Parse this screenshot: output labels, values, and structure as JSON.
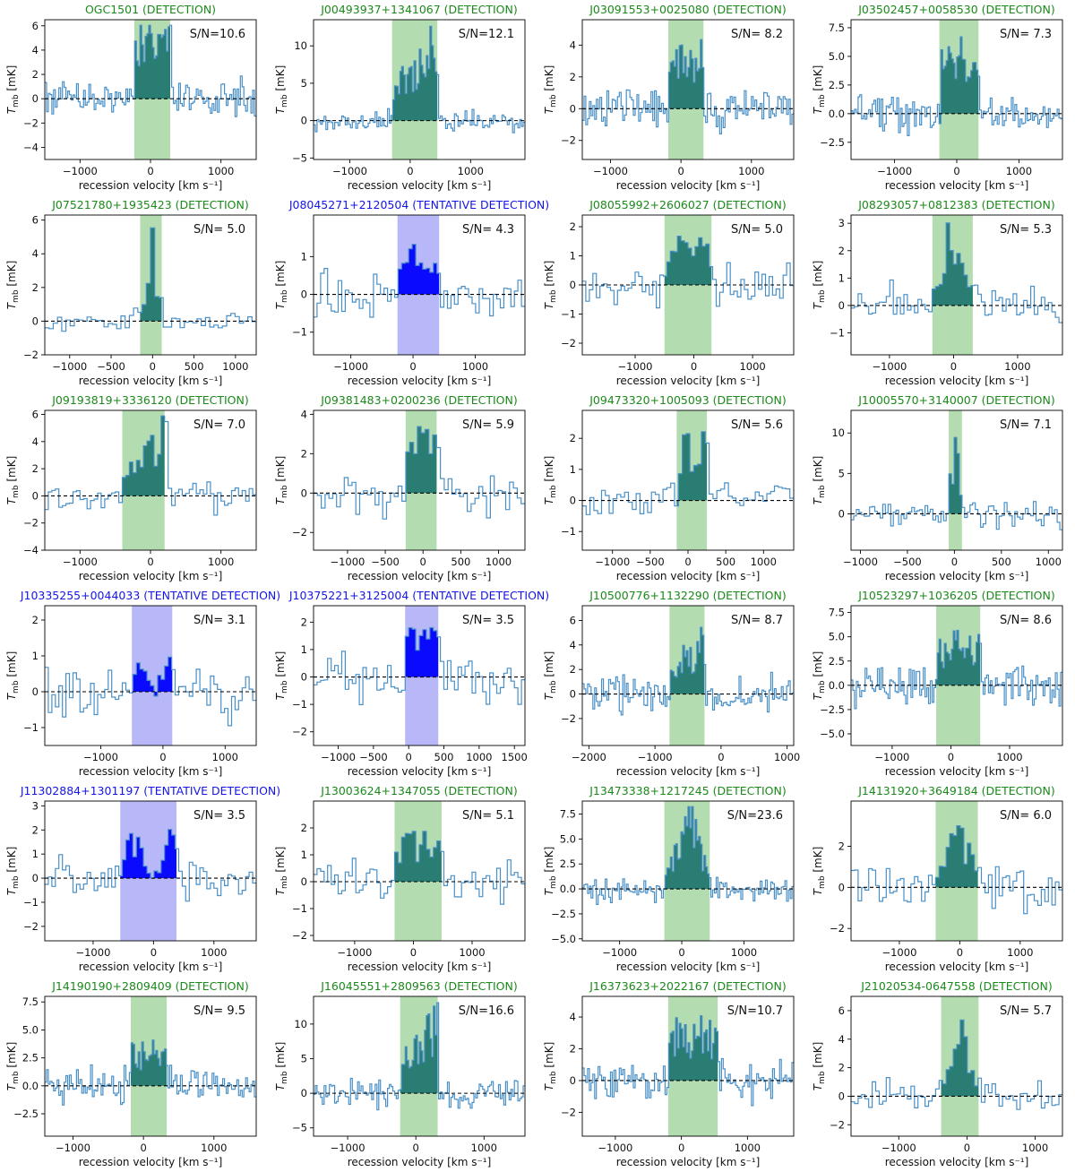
{
  "colors": {
    "detection": "#1a8a1a",
    "tentative": "#1515e8",
    "spectrum": "#4a90c8",
    "detection_fill": "#2a7d72",
    "detection_band": "#b3dcb0",
    "tentative_fill": "#0a0aff",
    "tentative_band": "#b8b8f8"
  },
  "axis_labels": {
    "x": "recession velocity [km s⁻¹]",
    "y": "T_mb [mK]"
  },
  "chart_data": [
    {
      "type": "line",
      "title": "OGC1501 (DETECTION)",
      "status": "detection",
      "snr": "S/N=10.6",
      "xlim": [
        -1500,
        1500
      ],
      "ylim": [
        -5,
        6.5
      ],
      "xticks": [
        -1000,
        0,
        1000
      ],
      "yticks": [
        -4,
        -2,
        0,
        2,
        4,
        6
      ],
      "band": [
        -230,
        280
      ],
      "nchan": 120,
      "noise": 1.3,
      "peak": 5.2,
      "shape": "flat",
      "seed": 11
    },
    {
      "type": "line",
      "title": "J00493937+1341067 (DETECTION)",
      "status": "detection",
      "snr": "S/N=12.1",
      "xlim": [
        -1600,
        1900
      ],
      "ylim": [
        -5.2,
        13.5
      ],
      "xticks": [
        -1000,
        0,
        1000
      ],
      "yticks": [
        -5,
        0,
        5,
        10
      ],
      "band": [
        -300,
        450
      ],
      "nchan": 120,
      "noise": 1.2,
      "peak": 8.5,
      "shape": "rise",
      "seed": 12
    },
    {
      "type": "line",
      "title": "J03091553+0025080 (DETECTION)",
      "status": "detection",
      "snr": "S/N= 8.2",
      "xlim": [
        -1400,
        1600
      ],
      "ylim": [
        -3.2,
        5.6
      ],
      "xticks": [
        -1000,
        0,
        1000
      ],
      "yticks": [
        -2,
        0,
        2,
        4
      ],
      "band": [
        -180,
        320
      ],
      "nchan": 120,
      "noise": 1.2,
      "peak": 3.8,
      "shape": "flat",
      "seed": 13
    },
    {
      "type": "line",
      "title": "J03502457+0058530 (DETECTION)",
      "status": "detection",
      "snr": "S/N= 7.3",
      "xlim": [
        -1700,
        1700
      ],
      "ylim": [
        -4,
        8.2
      ],
      "xticks": [
        -1000,
        0,
        1000
      ],
      "yticks": [
        -2.5,
        0.0,
        2.5,
        5.0,
        7.5
      ],
      "band": [
        -280,
        350
      ],
      "nchan": 120,
      "noise": 1.3,
      "peak": 5.5,
      "shape": "flat",
      "seed": 14
    },
    {
      "type": "line",
      "title": "J07521780+1935423 (DETECTION)",
      "status": "detection",
      "snr": "S/N= 5.0",
      "xlim": [
        -1300,
        1250
      ],
      "ylim": [
        -2,
        6.3
      ],
      "xticks": [
        -1000,
        -500,
        0,
        500,
        1000
      ],
      "yticks": [
        -2,
        0,
        2,
        4,
        6
      ],
      "band": [
        -150,
        110
      ],
      "nchan": 50,
      "noise": 0.6,
      "peak": 3.5,
      "shape": "peak",
      "seed": 21
    },
    {
      "type": "line",
      "title": "J08045271+2120504 (TENTATIVE DETECTION)",
      "status": "tentative",
      "snr": "S/N= 4.3",
      "xlim": [
        -1600,
        1800
      ],
      "ylim": [
        -1.6,
        2.1
      ],
      "xticks": [
        -1000,
        0,
        1000
      ],
      "yticks": [
        -1,
        0,
        1
      ],
      "band": [
        -250,
        420
      ],
      "nchan": 60,
      "noise": 0.6,
      "peak": 1.0,
      "shape": "flat",
      "seed": 22
    },
    {
      "type": "line",
      "title": "J08055992+2606027 (DETECTION)",
      "status": "detection",
      "snr": "S/N= 5.0",
      "xlim": [
        -1900,
        1700
      ],
      "ylim": [
        -2.4,
        2.4
      ],
      "xticks": [
        -1000,
        0,
        1000
      ],
      "yticks": [
        -2,
        -1,
        0,
        1,
        2
      ],
      "band": [
        -500,
        300
      ],
      "nchan": 60,
      "noise": 0.7,
      "peak": 1.5,
      "shape": "flat",
      "seed": 23
    },
    {
      "type": "line",
      "title": "J08293057+0812383 (DETECTION)",
      "status": "detection",
      "snr": "S/N= 5.3",
      "xlim": [
        -1600,
        1700
      ],
      "ylim": [
        -1.8,
        3.3
      ],
      "xticks": [
        -1000,
        0,
        1000
      ],
      "yticks": [
        -1,
        0,
        1,
        2,
        3
      ],
      "band": [
        -330,
        300
      ],
      "nchan": 60,
      "noise": 0.6,
      "peak": 2.0,
      "shape": "peak",
      "seed": 24
    },
    {
      "type": "line",
      "title": "J09193819+3336120 (DETECTION)",
      "status": "detection",
      "snr": "S/N= 7.0",
      "xlim": [
        -1500,
        1500
      ],
      "ylim": [
        -4,
        6.3
      ],
      "xticks": [
        -1000,
        0,
        1000
      ],
      "yticks": [
        -4,
        -2,
        0,
        2,
        4,
        6
      ],
      "band": [
        -400,
        200
      ],
      "nchan": 60,
      "noise": 1.0,
      "peak": 3.6,
      "shape": "rise",
      "seed": 31
    },
    {
      "type": "line",
      "title": "J09381483+0200236 (DETECTION)",
      "status": "detection",
      "snr": "S/N= 5.9",
      "xlim": [
        -1450,
        1350
      ],
      "ylim": [
        -2.9,
        4.2
      ],
      "xticks": [
        -1000,
        -500,
        0,
        500,
        1000
      ],
      "yticks": [
        -2,
        0,
        2,
        4
      ],
      "band": [
        -230,
        180
      ],
      "nchan": 55,
      "noise": 1.0,
      "peak": 3.0,
      "shape": "flat",
      "seed": 32
    },
    {
      "type": "line",
      "title": "J09473320+1005093 (DETECTION)",
      "status": "detection",
      "snr": "S/N= 5.6",
      "xlim": [
        -1400,
        1400
      ],
      "ylim": [
        -1.6,
        2.9
      ],
      "xticks": [
        -1000,
        -500,
        0,
        500,
        1000
      ],
      "yticks": [
        -1,
        0,
        1,
        2
      ],
      "band": [
        -150,
        250
      ],
      "nchan": 55,
      "noise": 0.5,
      "peak": 1.8,
      "shape": "flat",
      "seed": 33
    },
    {
      "type": "line",
      "title": "J10005570+3140007 (DETECTION)",
      "status": "detection",
      "snr": "S/N= 7.1",
      "xlim": [
        -1100,
        1150
      ],
      "ylim": [
        -4.5,
        12.8
      ],
      "xticks": [
        -1000,
        -500,
        0,
        500,
        1000
      ],
      "yticks": [
        0,
        5,
        10
      ],
      "band": [
        -60,
        80
      ],
      "nchan": 80,
      "noise": 1.5,
      "peak": 9.0,
      "shape": "peak",
      "seed": 34
    },
    {
      "type": "line",
      "title": "J10335255+0044033 (TENTATIVE DETECTION)",
      "status": "tentative",
      "snr": "S/N= 3.1",
      "xlim": [
        -1900,
        1500
      ],
      "ylim": [
        -1.5,
        2.4
      ],
      "xticks": [
        -1000,
        0,
        1000
      ],
      "yticks": [
        -1,
        0,
        1,
        2
      ],
      "band": [
        -500,
        150
      ],
      "nchan": 60,
      "noise": 0.6,
      "peak": 0.8,
      "shape": "double",
      "seed": 41
    },
    {
      "type": "line",
      "title": "J10375221+3125004 (TENTATIVE DETECTION)",
      "status": "tentative",
      "snr": "S/N= 3.5",
      "xlim": [
        -1350,
        1650
      ],
      "ylim": [
        -2.5,
        2.6
      ],
      "xticks": [
        -1000,
        -500,
        0,
        500,
        1000,
        1500
      ],
      "yticks": [
        -2,
        -1,
        0,
        1,
        2
      ],
      "band": [
        -50,
        420
      ],
      "nchan": 60,
      "noise": 0.8,
      "peak": 1.5,
      "shape": "flat",
      "seed": 42
    },
    {
      "type": "line",
      "title": "J10500776+1132290 (DETECTION)",
      "status": "detection",
      "snr": "S/N= 8.7",
      "xlim": [
        -2100,
        1100
      ],
      "ylim": [
        -4.2,
        7.2
      ],
      "xticks": [
        -2000,
        -1000,
        0,
        1000
      ],
      "yticks": [
        -2,
        0,
        2,
        4,
        6
      ],
      "band": [
        -780,
        -250
      ],
      "nchan": 120,
      "noise": 1.3,
      "peak": 3.5,
      "shape": "rise",
      "seed": 43
    },
    {
      "type": "line",
      "title": "J10523297+1036205 (DETECTION)",
      "status": "detection",
      "snr": "S/N= 8.6",
      "xlim": [
        -1700,
        1900
      ],
      "ylim": [
        -6.2,
        8.2
      ],
      "xticks": [
        -1000,
        0,
        1000
      ],
      "yticks": [
        -5.0,
        -2.5,
        0.0,
        2.5,
        5.0,
        7.5
      ],
      "band": [
        -250,
        500
      ],
      "nchan": 120,
      "noise": 1.8,
      "peak": 4.5,
      "shape": "flat",
      "seed": 44
    },
    {
      "type": "line",
      "title": "J11302884+1301197 (TENTATIVE DETECTION)",
      "status": "tentative",
      "snr": "S/N= 3.5",
      "xlim": [
        -1800,
        1700
      ],
      "ylim": [
        -2.6,
        3.2
      ],
      "xticks": [
        -1000,
        0,
        1000
      ],
      "yticks": [
        -2,
        -1,
        0,
        1,
        2,
        3
      ],
      "band": [
        -550,
        380
      ],
      "nchan": 60,
      "noise": 0.7,
      "peak": 1.3,
      "shape": "double",
      "seed": 51
    },
    {
      "type": "line",
      "title": "J13003624+1347055 (DETECTION)",
      "status": "detection",
      "snr": "S/N= 5.1",
      "xlim": [
        -1700,
        1900
      ],
      "ylim": [
        -2.2,
        3.0
      ],
      "xticks": [
        -1000,
        0,
        1000
      ],
      "yticks": [
        -2,
        -1,
        0,
        1,
        2
      ],
      "band": [
        -320,
        480
      ],
      "nchan": 60,
      "noise": 0.6,
      "peak": 1.5,
      "shape": "flat",
      "seed": 52
    },
    {
      "type": "line",
      "title": "J13473338+1217245 (DETECTION)",
      "status": "detection",
      "snr": "S/N=23.6",
      "xlim": [
        -1600,
        1800
      ],
      "ylim": [
        -5.2,
        8.8
      ],
      "xticks": [
        -1000,
        0,
        1000
      ],
      "yticks": [
        -5.0,
        -2.5,
        0.0,
        2.5,
        5.0,
        7.5
      ],
      "band": [
        -280,
        450
      ],
      "nchan": 120,
      "noise": 1.1,
      "peak": 6.5,
      "shape": "gauss",
      "seed": 53
    },
    {
      "type": "line",
      "title": "J14131920+3649184 (DETECTION)",
      "status": "detection",
      "snr": "S/N= 6.0",
      "xlim": [
        -1800,
        1700
      ],
      "ylim": [
        -2.6,
        4.2
      ],
      "xticks": [
        -1000,
        0,
        1000
      ],
      "yticks": [
        -2,
        0,
        2
      ],
      "band": [
        -400,
        300
      ],
      "nchan": 60,
      "noise": 0.9,
      "peak": 2.5,
      "shape": "gauss",
      "seed": 54
    },
    {
      "type": "line",
      "title": "J14190190+2809409 (DETECTION)",
      "status": "detection",
      "snr": "S/N= 9.5",
      "xlim": [
        -1400,
        1600
      ],
      "ylim": [
        -4.5,
        8.0
      ],
      "xticks": [
        -1000,
        0,
        1000
      ],
      "yticks": [
        -2.5,
        0.0,
        2.5,
        5.0,
        7.5
      ],
      "band": [
        -180,
        330
      ],
      "nchan": 120,
      "noise": 1.3,
      "peak": 3.5,
      "shape": "flat",
      "seed": 61
    },
    {
      "type": "line",
      "title": "J16045551+2809563 (DETECTION)",
      "status": "detection",
      "snr": "S/N=16.6",
      "xlim": [
        -1500,
        1600
      ],
      "ylim": [
        -6.2,
        14.0
      ],
      "xticks": [
        -1000,
        0,
        1000
      ],
      "yticks": [
        -5,
        0,
        5,
        10
      ],
      "band": [
        -230,
        320
      ],
      "nchan": 120,
      "noise": 1.6,
      "peak": 8.0,
      "shape": "rise",
      "seed": 62
    },
    {
      "type": "line",
      "title": "J16373623+2022167 (DETECTION)",
      "status": "detection",
      "snr": "S/N=10.7",
      "xlim": [
        -1500,
        1700
      ],
      "ylim": [
        -3.5,
        5.3
      ],
      "xticks": [
        -1000,
        0,
        1000
      ],
      "yticks": [
        -2,
        0,
        2,
        4
      ],
      "band": [
        -200,
        550
      ],
      "nchan": 120,
      "noise": 1.1,
      "peak": 3.3,
      "shape": "flat",
      "seed": 63
    },
    {
      "type": "line",
      "title": "J21020534-0647558 (DETECTION)",
      "status": "detection",
      "snr": "S/N= 5.7",
      "xlim": [
        -1700,
        1400
      ],
      "ylim": [
        -2.8,
        7.0
      ],
      "xticks": [
        -1000,
        0,
        1000
      ],
      "yticks": [
        -2,
        0,
        2,
        4,
        6
      ],
      "band": [
        -380,
        170
      ],
      "nchan": 60,
      "noise": 1.0,
      "peak": 3.5,
      "shape": "peak",
      "seed": 64
    }
  ]
}
